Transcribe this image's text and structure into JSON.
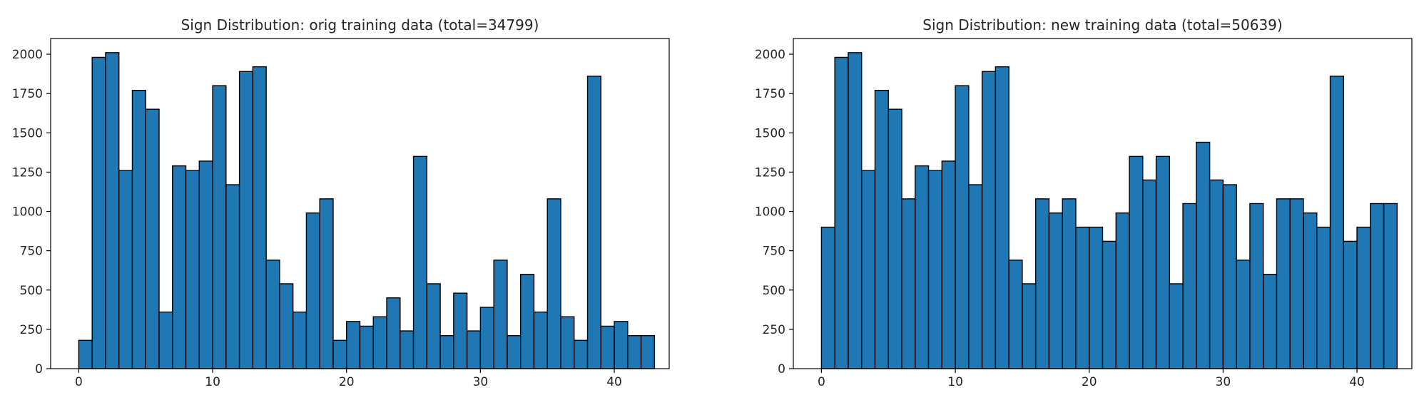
{
  "chart_data": [
    {
      "type": "bar",
      "title": "Sign Distribution: orig training data (total=34799)",
      "xlabel": "",
      "ylabel": "",
      "xlim": [
        -2.1,
        44.1
      ],
      "ylim": [
        0,
        2100
      ],
      "xticks": [
        0,
        10,
        20,
        30,
        40
      ],
      "yticks": [
        0,
        250,
        500,
        750,
        1000,
        1250,
        1500,
        1750,
        2000
      ],
      "grid": false,
      "bin_edges": [
        0,
        1,
        2,
        3,
        4,
        5,
        6,
        7,
        8,
        9,
        10,
        11,
        12,
        13,
        14,
        15,
        16,
        17,
        18,
        19,
        20,
        21,
        22,
        23,
        24,
        25,
        26,
        27,
        28,
        29,
        30,
        31,
        32,
        33,
        34,
        35,
        36,
        37,
        38,
        39,
        40,
        41,
        42
      ],
      "values": [
        180,
        1980,
        2010,
        1260,
        1770,
        1650,
        360,
        1290,
        1260,
        1320,
        1800,
        1170,
        1890,
        1920,
        690,
        540,
        360,
        990,
        1080,
        180,
        300,
        270,
        330,
        450,
        240,
        1350,
        540,
        210,
        480,
        240,
        390,
        690,
        210,
        600,
        360,
        1080,
        330,
        180,
        1860,
        270,
        300,
        210,
        210
      ],
      "bar_color": "#1f77b4",
      "edge_color": "#000000"
    },
    {
      "type": "bar",
      "title": "Sign Distribution: new training data (total=50639)",
      "xlabel": "",
      "ylabel": "",
      "xlim": [
        -2.1,
        44.1
      ],
      "ylim": [
        0,
        2100
      ],
      "xticks": [
        0,
        10,
        20,
        30,
        40
      ],
      "yticks": [
        0,
        250,
        500,
        750,
        1000,
        1250,
        1500,
        1750,
        2000
      ],
      "grid": false,
      "bin_edges": [
        0,
        1,
        2,
        3,
        4,
        5,
        6,
        7,
        8,
        9,
        10,
        11,
        12,
        13,
        14,
        15,
        16,
        17,
        18,
        19,
        20,
        21,
        22,
        23,
        24,
        25,
        26,
        27,
        28,
        29,
        30,
        31,
        32,
        33,
        34,
        35,
        36,
        37,
        38,
        39,
        40,
        41,
        42
      ],
      "values": [
        900,
        1980,
        2010,
        1260,
        1770,
        1650,
        1080,
        1290,
        1260,
        1320,
        1800,
        1170,
        1890,
        1920,
        690,
        540,
        1080,
        990,
        1080,
        900,
        900,
        810,
        990,
        1350,
        1200,
        1350,
        540,
        1050,
        1440,
        1200,
        1170,
        690,
        1050,
        600,
        1080,
        1080,
        990,
        900,
        1860,
        810,
        900,
        1050,
        1050
      ],
      "bar_color": "#1f77b4",
      "edge_color": "#000000"
    }
  ]
}
